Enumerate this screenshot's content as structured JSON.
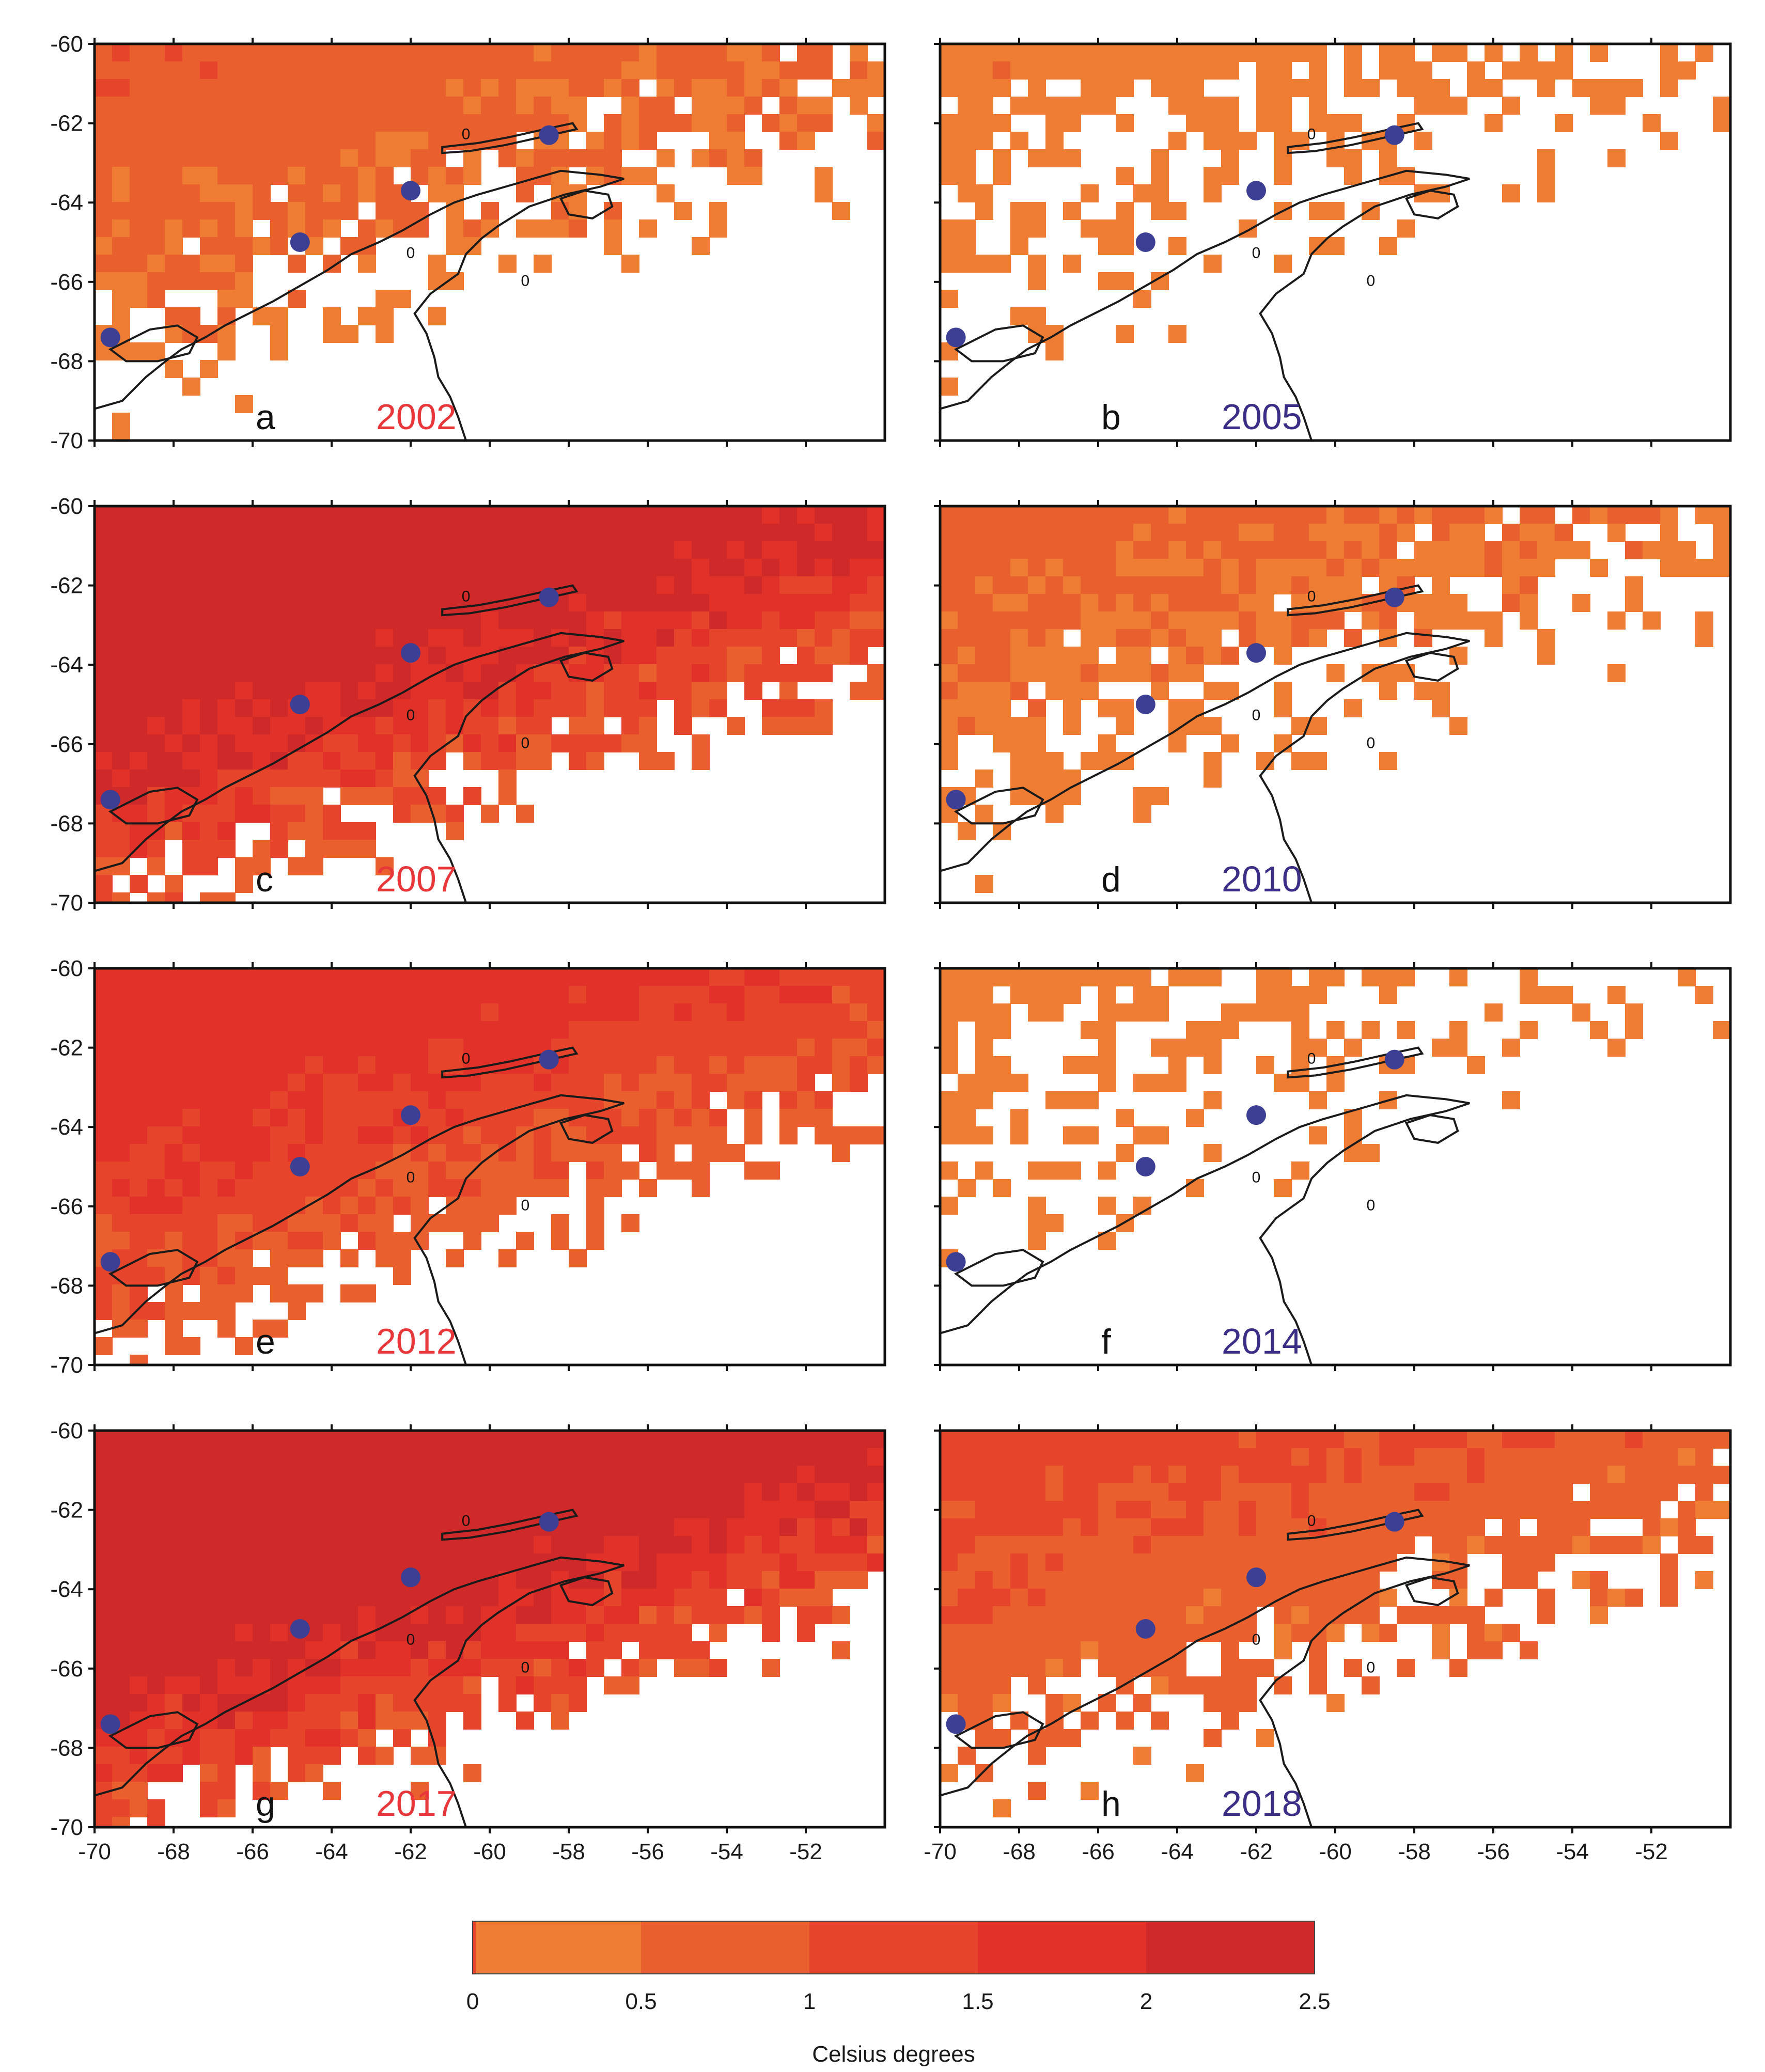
{
  "figure": {
    "colorbar_title": "Celsius degrees",
    "colorbar_ticks": [
      "0",
      "0.5",
      "1",
      "1.5",
      "2",
      "2.5"
    ],
    "colorbar_colors": [
      "#ee7c32",
      "#e9602e",
      "#e6452c",
      "#e23129",
      "#d0292a"
    ],
    "x_ticks": [
      "-70",
      "-68",
      "-66",
      "-64",
      "-62",
      "-60",
      "-58",
      "-56",
      "-54",
      "-52"
    ],
    "y_ticks": [
      "-60",
      "-62",
      "-64",
      "-66",
      "-68",
      "-70"
    ],
    "x_range": [
      -70,
      -50
    ],
    "y_range": [
      -70,
      -60
    ],
    "contour_label": "0"
  },
  "colors": {
    "year_red": "#e8373a",
    "year_blue": "#3b2e86",
    "station": "#3c3f93",
    "land": "#1a1a1a"
  },
  "stations": [
    {
      "lon": -58.5,
      "lat": -62.3
    },
    {
      "lon": -62.0,
      "lat": -63.7
    },
    {
      "lon": -64.8,
      "lat": -65.0
    },
    {
      "lon": -69.6,
      "lat": -67.4
    }
  ],
  "panels": [
    {
      "letter": "a",
      "year": "2002",
      "year_color": "red",
      "intensity": 0.45
    },
    {
      "letter": "b",
      "year": "2005",
      "year_color": "blue",
      "intensity": 0.3
    },
    {
      "letter": "c",
      "year": "2007",
      "year_color": "red",
      "intensity": 0.95
    },
    {
      "letter": "d",
      "year": "2010",
      "year_color": "blue",
      "intensity": 0.4
    },
    {
      "letter": "e",
      "year": "2012",
      "year_color": "red",
      "intensity": 0.75
    },
    {
      "letter": "f",
      "year": "2014",
      "year_color": "blue",
      "intensity": 0.25
    },
    {
      "letter": "g",
      "year": "2017",
      "year_color": "red",
      "intensity": 1.0
    },
    {
      "letter": "h",
      "year": "2018",
      "year_color": "blue",
      "intensity": 0.55
    }
  ]
}
